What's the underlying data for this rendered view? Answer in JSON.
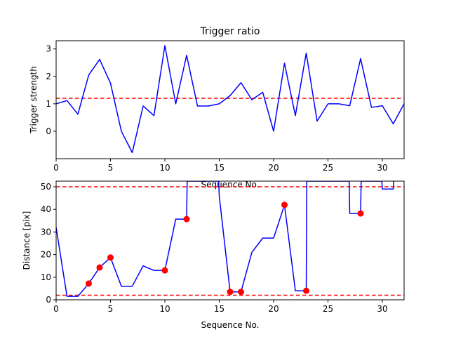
{
  "chart_data": [
    {
      "type": "line",
      "title": "Trigger ratio",
      "xlabel": "Sequence No.",
      "ylabel": "Trigger strength",
      "xlim": [
        0,
        32
      ],
      "ylim": [
        -1.0,
        3.3
      ],
      "xticks": [
        0,
        5,
        10,
        15,
        20,
        25,
        30
      ],
      "yticks": [
        0,
        1,
        2,
        3
      ],
      "grid": false,
      "series": [
        {
          "color": "#0000ff",
          "x": [
            0,
            1,
            2,
            3,
            4,
            5,
            6,
            7,
            8,
            9,
            10,
            11,
            12,
            13,
            14,
            15,
            16,
            17,
            18,
            19,
            20,
            21,
            22,
            23,
            24,
            25,
            26,
            27,
            28,
            29,
            30,
            31,
            32
          ],
          "values": [
            1.0,
            1.12,
            0.62,
            2.05,
            2.62,
            1.75,
            0.0,
            -0.78,
            0.92,
            0.57,
            3.12,
            1.0,
            2.77,
            0.92,
            0.92,
            1.0,
            1.3,
            1.77,
            1.15,
            1.42,
            0.0,
            2.48,
            0.57,
            2.85,
            0.37,
            1.0,
            1.0,
            0.93,
            2.65,
            0.87,
            0.93,
            0.27,
            1.0
          ]
        }
      ],
      "hlines": [
        {
          "y": 1.2,
          "color": "#ff0000",
          "style": "dashed"
        }
      ]
    },
    {
      "type": "line",
      "title": "",
      "xlabel": "Sequence No.",
      "ylabel": "Distance [pix]",
      "xlim": [
        0,
        32
      ],
      "ylim": [
        0,
        52.5
      ],
      "xticks": [
        0,
        5,
        10,
        15,
        20,
        25,
        30
      ],
      "yticks": [
        0,
        10,
        20,
        30,
        40,
        50
      ],
      "grid": false,
      "series": [
        {
          "color": "#0000ff",
          "x": [
            0,
            1,
            2,
            3,
            4,
            5,
            6,
            7,
            8,
            9,
            10,
            11,
            12,
            12.05,
            14.95,
            15,
            16,
            17,
            18,
            19,
            20,
            21,
            22,
            23,
            23.05,
            26.95,
            27,
            28,
            28.05,
            29.95,
            30,
            31,
            31.05
          ],
          "values": [
            32.0,
            1.5,
            1.5,
            7.2,
            14.3,
            18.7,
            6.0,
            6.0,
            15.0,
            13.0,
            13.0,
            35.7,
            35.7,
            52.5,
            52.5,
            46.0,
            3.5,
            3.5,
            21.0,
            27.3,
            27.3,
            42.0,
            4.0,
            4.0,
            52.5,
            52.5,
            38.2,
            38.2,
            52.5,
            52.5,
            49.0,
            49.0,
            52.5
          ]
        },
        {
          "kind": "markers",
          "color": "#ff0000",
          "x": [
            3,
            4,
            5,
            10,
            12,
            16,
            17,
            21,
            23,
            28
          ],
          "values": [
            7.2,
            14.3,
            18.7,
            13.0,
            35.7,
            3.5,
            3.5,
            42.0,
            4.0,
            38.2
          ]
        }
      ],
      "hlines": [
        {
          "y": 50,
          "color": "#ff0000",
          "style": "dashed"
        },
        {
          "y": 2,
          "color": "#ff0000",
          "style": "dashed"
        }
      ]
    }
  ]
}
